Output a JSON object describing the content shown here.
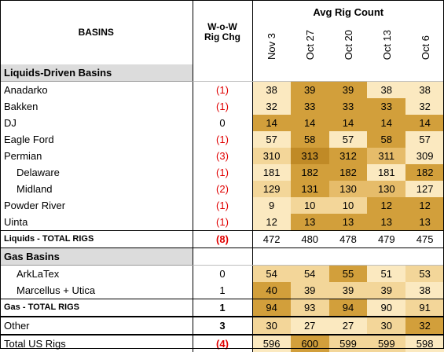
{
  "header": {
    "basins_label": "BASINS",
    "chg_label_line1": "W-o-W",
    "chg_label_line2": "Rig Chg",
    "avg_title": "Avg Rig Count",
    "dates": [
      "Nov 3",
      "Oct 27",
      "Oct 20",
      "Oct 13",
      "Oct 6"
    ]
  },
  "sections": {
    "liquids": "Liquids-Driven Basins",
    "gas": "Gas Basins"
  },
  "rows": [
    {
      "name": "Anadarko",
      "chg": "(1)",
      "vals": [
        "38",
        "39",
        "39",
        "38",
        "38"
      ]
    },
    {
      "name": "Bakken",
      "chg": "(1)",
      "vals": [
        "32",
        "33",
        "33",
        "33",
        "32"
      ]
    },
    {
      "name": "DJ",
      "chg": "0",
      "vals": [
        "14",
        "14",
        "14",
        "14",
        "14"
      ]
    },
    {
      "name": "Eagle Ford",
      "chg": "(1)",
      "vals": [
        "57",
        "58",
        "57",
        "58",
        "57"
      ]
    },
    {
      "name": "Permian",
      "chg": "(3)",
      "vals": [
        "310",
        "313",
        "312",
        "311",
        "309"
      ]
    },
    {
      "name": "Delaware",
      "chg": "(1)",
      "vals": [
        "181",
        "182",
        "182",
        "181",
        "182"
      ]
    },
    {
      "name": "Midland",
      "chg": "(2)",
      "vals": [
        "129",
        "131",
        "130",
        "130",
        "127"
      ]
    },
    {
      "name": "Powder River",
      "chg": "(1)",
      "vals": [
        "9",
        "10",
        "10",
        "12",
        "12"
      ]
    },
    {
      "name": "Uinta",
      "chg": "(1)",
      "vals": [
        "12",
        "13",
        "13",
        "13",
        "13"
      ]
    }
  ],
  "liquids_total": {
    "name": "Liquids - TOTAL RIGS",
    "chg": "(8)",
    "vals": [
      "472",
      "480",
      "478",
      "479",
      "475"
    ]
  },
  "gas_rows": [
    {
      "name": "ArkLaTex",
      "chg": "0",
      "vals": [
        "54",
        "54",
        "55",
        "51",
        "53"
      ]
    },
    {
      "name": "Marcellus + Utica",
      "chg": "1",
      "vals": [
        "40",
        "39",
        "39",
        "39",
        "38"
      ]
    }
  ],
  "gas_total": {
    "name": "Gas - TOTAL RIGS",
    "chg": "1",
    "vals": [
      "94",
      "93",
      "94",
      "90",
      "91"
    ]
  },
  "other": {
    "name": "Other",
    "chg": "3",
    "vals": [
      "30",
      "27",
      "27",
      "30",
      "32"
    ]
  },
  "us_total": {
    "name": "Total US Rigs",
    "chg": "(4)",
    "vals": [
      "596",
      "600",
      "599",
      "599",
      "598"
    ]
  },
  "colors": {
    "negative": "#e00000",
    "shade_light": "#fbe9c0",
    "shade_dark": "#c08a26"
  }
}
